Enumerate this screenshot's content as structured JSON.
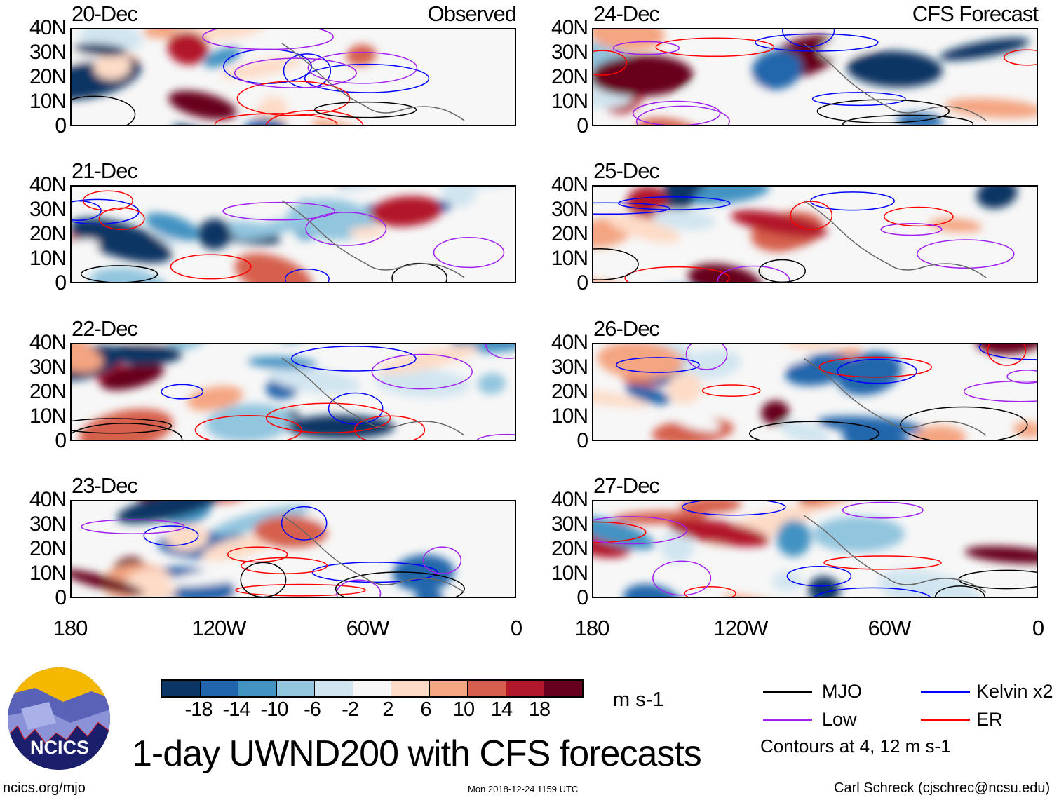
{
  "panels": {
    "left": [
      {
        "date": "20-Dec",
        "corner": "Observed"
      },
      {
        "date": "21-Dec"
      },
      {
        "date": "22-Dec"
      },
      {
        "date": "23-Dec"
      }
    ],
    "right": [
      {
        "date": "24-Dec",
        "corner": "CFS Forecast"
      },
      {
        "date": "25-Dec"
      },
      {
        "date": "26-Dec"
      },
      {
        "date": "27-Dec"
      }
    ]
  },
  "y_ticks": [
    "40N",
    "30N",
    "20N",
    "10N",
    "0"
  ],
  "x_ticks": [
    "180",
    "120W",
    "60W",
    "0"
  ],
  "colorbar": {
    "colors": [
      "#0b3564",
      "#2166ac",
      "#4393c3",
      "#92c5de",
      "#d1e5f0",
      "#f7f7f7",
      "#fddbc7",
      "#f4a582",
      "#d6604d",
      "#b2182b",
      "#67001f"
    ],
    "labels": [
      "-18",
      "-14",
      "-10",
      "-6",
      "-2",
      "2",
      "6",
      "10",
      "14",
      "18"
    ],
    "units": "m s-1"
  },
  "legend": {
    "items": [
      {
        "label": "MJO",
        "color": "#000000"
      },
      {
        "label": "Kelvin x2",
        "color": "#0000ff"
      },
      {
        "label": "Low",
        "color": "#a020f0"
      },
      {
        "label": "ER",
        "color": "#ff0000"
      }
    ],
    "note": "Contours at 4, 12 m s-1"
  },
  "logo": {
    "text": "NCICS"
  },
  "title": "1-day UWND200 with CFS forecasts",
  "footer": {
    "url": "ncics.org/mjo",
    "timestamp": "Mon 2018-12-24 1159 UTC",
    "credit": "Carl Schreck (cjschrec@ncsu.edu)"
  }
}
